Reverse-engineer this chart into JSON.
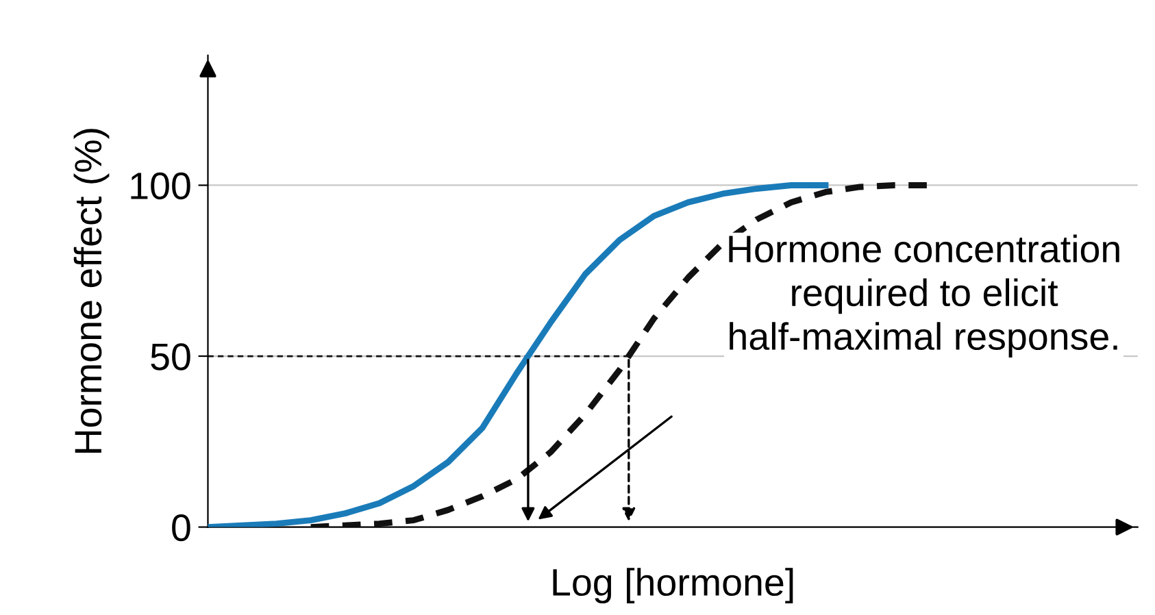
{
  "chart_data": {
    "type": "line",
    "xlabel": "Log [hormone]",
    "ylabel": "Hormone effect (%)",
    "categories": [
      null,
      null,
      null,
      null,
      null,
      null,
      null,
      null,
      null,
      null,
      null,
      null,
      null,
      null,
      null,
      null,
      null,
      null,
      null,
      null,
      null,
      null,
      null,
      null,
      null,
      null,
      null,
      null
    ],
    "series": [
      {
        "color": "#1a7bb9",
        "line_style": "solid",
        "values": [
          0,
          0.5,
          1,
          2,
          4,
          7,
          12,
          19,
          29,
          45,
          60,
          74,
          84,
          91,
          95,
          97.5,
          99,
          100,
          100,
          null,
          null,
          null,
          null,
          null,
          null,
          null,
          null,
          null
        ]
      },
      {
        "color": "#111111",
        "line_style": "dashed",
        "values": [
          null,
          null,
          null,
          0,
          0.5,
          1,
          2,
          5,
          9,
          14,
          22,
          33,
          46,
          61,
          73,
          83,
          90,
          95,
          98,
          99.5,
          100,
          100,
          null,
          null,
          null,
          null,
          null,
          null
        ]
      }
    ],
    "ylim": [
      0,
      138
    ],
    "yticks": [
      0,
      50,
      100
    ],
    "grid": "y",
    "ref_lines": [
      {
        "axis": "y",
        "value": 50,
        "line_style": "dashed",
        "color": "#111111"
      }
    ],
    "annotations": [
      "Hormone concentration required to elicit half-maximal response."
    ]
  }
}
